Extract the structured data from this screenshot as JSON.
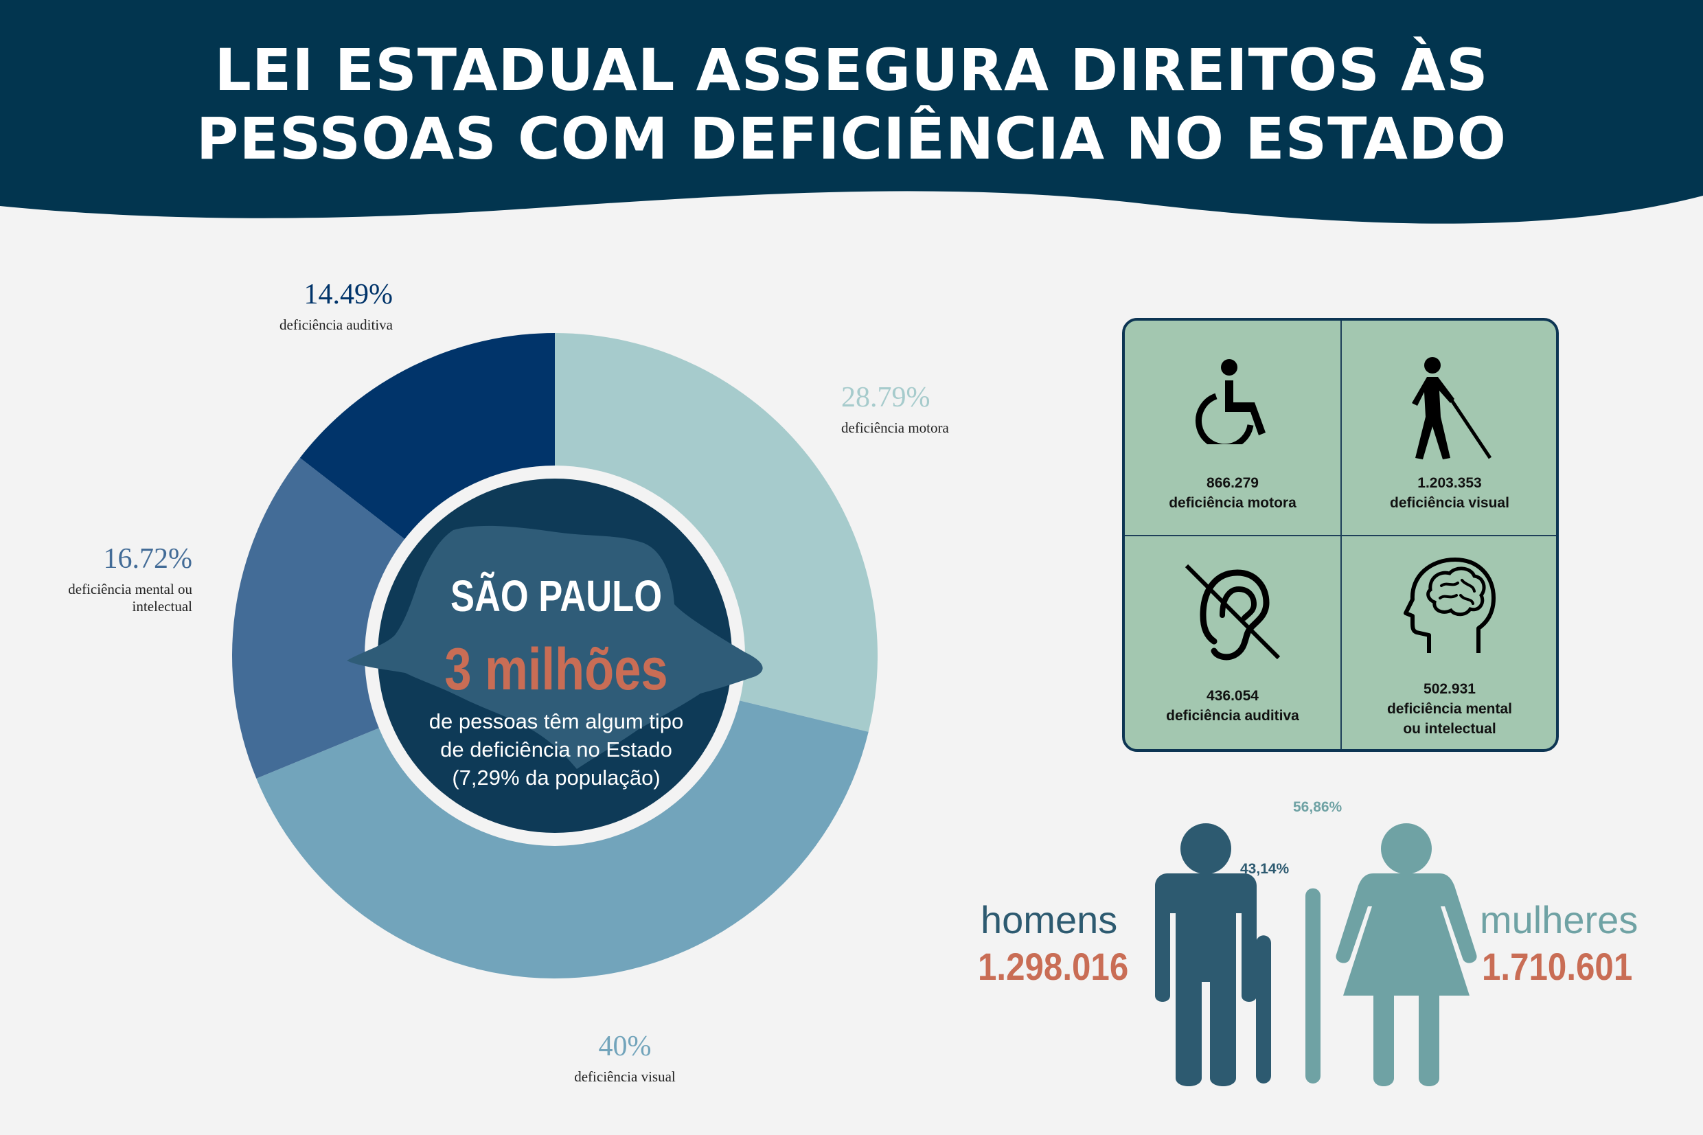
{
  "header": {
    "title_line1": "LEI ESTADUAL ASSEGURA DIREITOS ÀS",
    "title_line2": "PESSOAS COM DEFICIÊNCIA NO ESTADO",
    "color": "#02354f"
  },
  "chart_data": {
    "type": "pie",
    "style": "donut",
    "slices": [
      {
        "label": "deficiência motora",
        "pct_label": "28.79%",
        "value": 28.79,
        "color": "#a6cbcc"
      },
      {
        "label": "deficiência visual",
        "pct_label": "40%",
        "value": 40,
        "color": "#72a4bb"
      },
      {
        "label": "deficiência mental ou intelectual",
        "pct_label": "16.72%",
        "value": 16.72,
        "color": "#436c97"
      },
      {
        "label": "deficiência auditiva",
        "pct_label": "14.49%",
        "value": 14.49,
        "color": "#01346a"
      }
    ],
    "center": {
      "state": "SÃO PAULO",
      "count": "3 milhões",
      "description": "de pessoas têm algum tipo de deficiência no Estado (7,29% da população)"
    }
  },
  "categories_panel": {
    "cells": [
      {
        "icon": "wheelchair-icon",
        "number": "866.279",
        "label": "deficiência motora"
      },
      {
        "icon": "blind-person-cane-icon",
        "number": "1.203.353",
        "label": "deficiência visual"
      },
      {
        "icon": "deaf-ear-icon",
        "number": "436.054",
        "label": "deficiência auditiva"
      },
      {
        "icon": "head-brain-icon",
        "number": "502.931",
        "label_line1": "deficiência mental",
        "label_line2": "ou intelectual"
      }
    ]
  },
  "gender": {
    "men": {
      "label": "homens",
      "value": "1.298.016",
      "pct_label": "43,14%",
      "pct": 43.14,
      "color": "#2d5a70"
    },
    "women": {
      "label": "mulheres",
      "value": "1.710.601",
      "pct_label": "56,86%",
      "pct": 56.86,
      "color": "#6fa2a4"
    }
  }
}
